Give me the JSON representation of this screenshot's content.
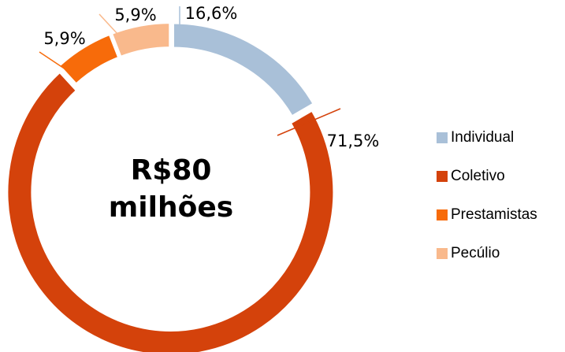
{
  "chart_data": {
    "type": "donut",
    "categories": [
      "Individual",
      "Coletivo",
      "Prestamistas",
      "Pecúlio"
    ],
    "values": [
      16.6,
      71.5,
      5.9,
      5.9
    ],
    "value_labels": [
      "16,6%",
      "71,5%",
      "5,9%",
      "5,9%"
    ],
    "colors": [
      "#a9c0d8",
      "#d4420b",
      "#f76b0a",
      "#f9b98c"
    ],
    "center_text": [
      "R$80",
      "milhões"
    ],
    "legend": "right"
  }
}
